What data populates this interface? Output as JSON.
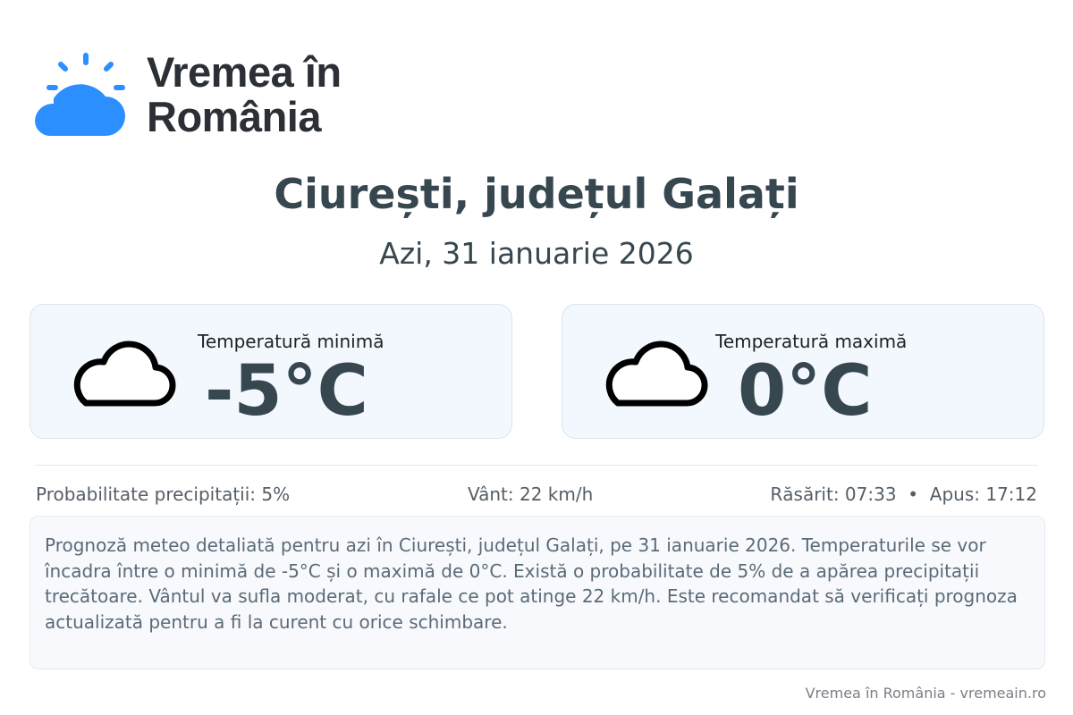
{
  "brand": {
    "line1": "Vremea în",
    "line2": "România",
    "color": "#2b8fff"
  },
  "header": {
    "title": "Ciurești, județul Galați",
    "date": "Azi, 31 ianuarie 2026"
  },
  "cards": [
    {
      "label": "Temperatură minimă",
      "value": "-5°C",
      "icon": "cloud-icon"
    },
    {
      "label": "Temperatură maximă",
      "value": "0°C",
      "icon": "cloud-icon"
    }
  ],
  "stats": {
    "precip": "Probabilitate precipitații: 5%",
    "wind": "Vânt: 22 km/h",
    "sun": "Răsărit: 07:33  •  Apus: 17:12"
  },
  "description": "Prognoză meteo detaliată pentru azi în Ciurești, județul Galați, pe 31 ianuarie 2026. Temperaturile se vor încadra între o minimă de -5°C și o maximă de 0°C. Există o probabilitate de 5% de a apărea precipitații trecătoare. Vântul va sufla moderat, cu rafale ce pot atinge 22 km/h. Este recomandat să verificați prognoza actualizată pentru a fi la curent cu orice schimbare.",
  "footer": "Vremea în România - vremeain.ro"
}
